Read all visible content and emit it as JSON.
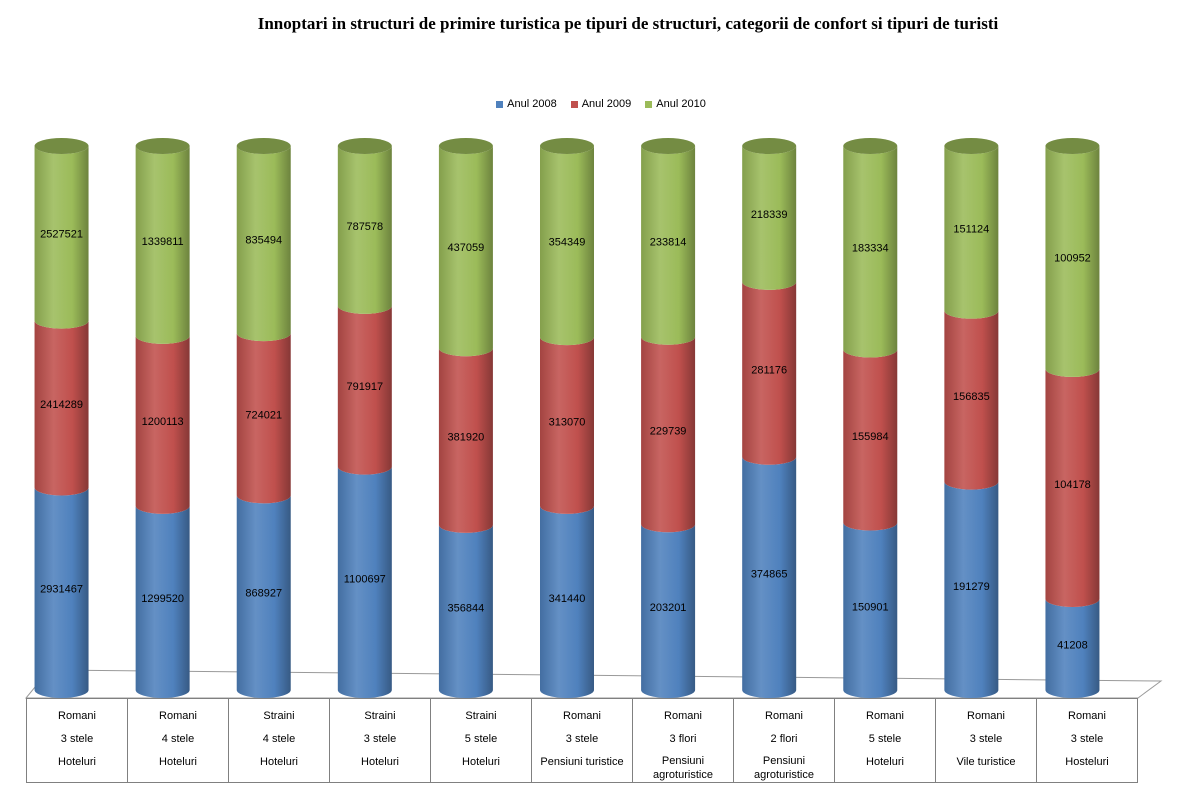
{
  "title": "Innoptari in structuri de primire turistica pe tipuri de structuri, categorii de confort si tipuri de turisti",
  "colors": {
    "Anul 2008": "#4F81BD",
    "Anul 2009": "#C0504D",
    "Anul 2010": "#9BBB59"
  },
  "chart_data": {
    "type": "bar",
    "stacked": "percent",
    "style": "3d-cylinder",
    "title": "Innoptari in structuri de primire turistica pe tipuri de structuri, categorii de confort si tipuri de turisti",
    "legend_position": "top",
    "categories": [
      [
        "Romani",
        "3 stele",
        "Hoteluri"
      ],
      [
        "Romani",
        "4 stele",
        "Hoteluri"
      ],
      [
        "Straini",
        "4 stele",
        "Hoteluri"
      ],
      [
        "Straini",
        "3 stele",
        "Hoteluri"
      ],
      [
        "Straini",
        "5 stele",
        "Hoteluri"
      ],
      [
        "Romani",
        "3 stele",
        "Pensiuni turistice"
      ],
      [
        "Romani",
        "3 flori",
        "Pensiuni agroturistice"
      ],
      [
        "Romani",
        "2 flori",
        "Pensiuni agroturistice"
      ],
      [
        "Romani",
        "5 stele",
        "Hoteluri"
      ],
      [
        "Romani",
        "3 stele",
        "Vile turistice"
      ],
      [
        "Romani",
        "3 stele",
        "Hosteluri"
      ]
    ],
    "series": [
      {
        "name": "Anul 2008",
        "values": [
          2931467,
          1299520,
          868927,
          1100697,
          356844,
          341440,
          203201,
          374865,
          150901,
          191279,
          41208
        ]
      },
      {
        "name": "Anul 2009",
        "values": [
          2414289,
          1200113,
          724021,
          791917,
          381920,
          313070,
          229739,
          281176,
          155984,
          156835,
          104178
        ]
      },
      {
        "name": "Anul 2010",
        "values": [
          2527521,
          1339811,
          835494,
          787578,
          437059,
          354349,
          233814,
          218339,
          183334,
          151124,
          100952
        ]
      }
    ]
  }
}
